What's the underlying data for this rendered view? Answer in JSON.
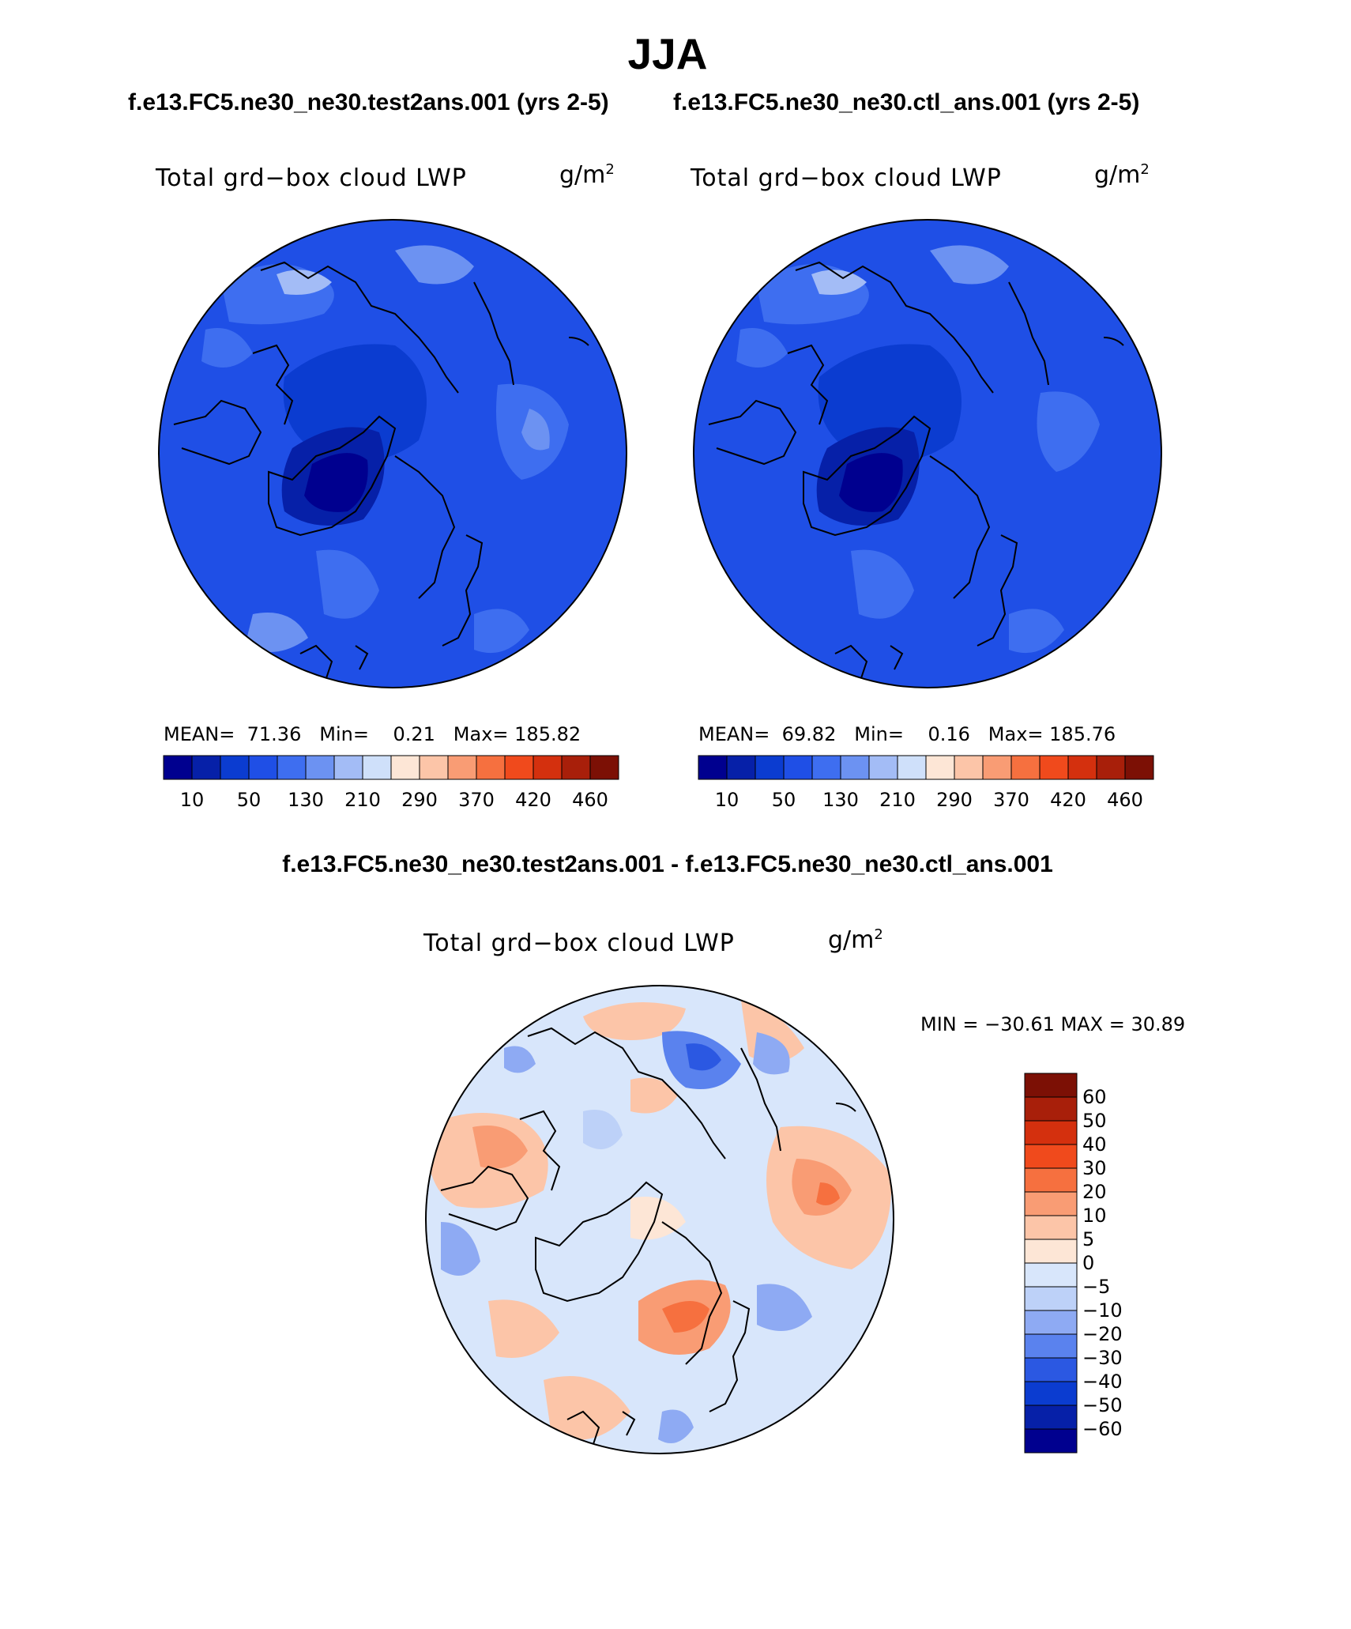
{
  "title": "JJA",
  "panels": [
    {
      "case_title": "f.e13.FC5.ne30_ne30.test2ans.001 (yrs 2-5)",
      "variable": "Total grd−box cloud LWP",
      "units": "g/m",
      "units_exp": "2",
      "stats": {
        "mean_label": "MEAN=",
        "mean": "71.36",
        "min_label": "Min=",
        "min": "0.21",
        "max_label": "Max=",
        "max": "185.82"
      }
    },
    {
      "case_title": "f.e13.FC5.ne30_ne30.ctl_ans.001 (yrs 2-5)",
      "variable": "Total grd−box cloud LWP",
      "units": "g/m",
      "units_exp": "2",
      "stats": {
        "mean_label": "MEAN=",
        "mean": "69.82",
        "min_label": "Min=",
        "min": "0.16",
        "max_label": "Max=",
        "max": "185.76"
      }
    }
  ],
  "colorbar_top": {
    "labels": [
      "10",
      "50",
      "130",
      "210",
      "290",
      "370",
      "420",
      "460"
    ],
    "colors": [
      "#00008f",
      "#0620a8",
      "#0b3cd0",
      "#1f4fe6",
      "#3e6ef0",
      "#6c92f2",
      "#a3bcf6",
      "#cfe0fa",
      "#fde6d6",
      "#fcc5a8",
      "#f99c74",
      "#f6703f",
      "#f04a1c",
      "#d4300e",
      "#a81f0a",
      "#7c1005"
    ]
  },
  "diff": {
    "title": "f.e13.FC5.ne30_ne30.test2ans.001 - f.e13.FC5.ne30_ne30.ctl_ans.001",
    "variable": "Total grd−box cloud LWP",
    "units": "g/m",
    "units_exp": "2",
    "stats": "MIN = −30.61 MAX =   30.89",
    "colorbar": {
      "labels": [
        "60",
        "50",
        "40",
        "30",
        "20",
        "10",
        "5",
        "0",
        "−5",
        "−10",
        "−20",
        "−30",
        "−40",
        "−50",
        "−60"
      ],
      "colors": [
        "#7c1005",
        "#a81f0a",
        "#d4300e",
        "#f04a1c",
        "#f6703f",
        "#f99c74",
        "#fcc5a8",
        "#fde6d6",
        "#d8e6fb",
        "#bdd1f8",
        "#8eaaf3",
        "#5a82ee",
        "#2b58e2",
        "#0b3cd0",
        "#0620a8",
        "#00008f"
      ]
    }
  }
}
